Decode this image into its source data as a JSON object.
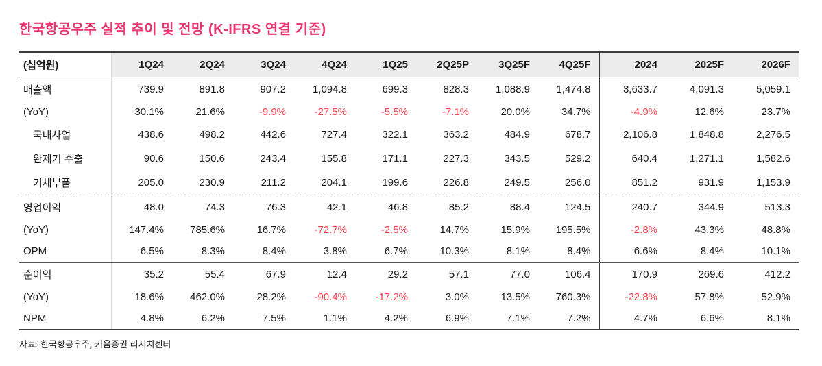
{
  "title": "한국항공우주 실적 추이 및 전망 (K-IFRS 연결 기준)",
  "source": "자료: 한국항공우주, 키움증권 리서치센터",
  "colors": {
    "title": "#e8356d",
    "negative": "#f8404e",
    "header_bg": "#ececec"
  },
  "chart_data": {
    "type": "table",
    "unit_label": "(십억원)",
    "columns": [
      "1Q24",
      "2Q24",
      "3Q24",
      "4Q24",
      "1Q25",
      "2Q25P",
      "3Q25F",
      "4Q25F",
      "2024",
      "2025F",
      "2026F"
    ],
    "sections": [
      {
        "rows": [
          {
            "label": "매출액",
            "indent": false,
            "values": [
              "739.9",
              "891.8",
              "907.2",
              "1,094.8",
              "699.3",
              "828.3",
              "1,088.9",
              "1,474.8",
              "3,633.7",
              "4,091.3",
              "5,059.1"
            ]
          },
          {
            "label": "(YoY)",
            "indent": false,
            "values": [
              "30.1%",
              "21.6%",
              "-9.9%",
              "-27.5%",
              "-5.5%",
              "-7.1%",
              "20.0%",
              "34.7%",
              "-4.9%",
              "12.6%",
              "23.7%"
            ]
          },
          {
            "label": "국내사업",
            "indent": true,
            "values": [
              "438.6",
              "498.2",
              "442.6",
              "727.4",
              "322.1",
              "363.2",
              "484.9",
              "678.7",
              "2,106.8",
              "1,848.8",
              "2,276.5"
            ]
          },
          {
            "label": "완제기 수출",
            "indent": true,
            "values": [
              "90.6",
              "150.6",
              "243.4",
              "155.8",
              "171.1",
              "227.3",
              "343.5",
              "529.2",
              "640.4",
              "1,271.1",
              "1,582.6"
            ]
          },
          {
            "label": "기체부품",
            "indent": true,
            "values": [
              "205.0",
              "230.9",
              "211.2",
              "204.1",
              "199.6",
              "226.8",
              "249.5",
              "256.0",
              "851.2",
              "931.9",
              "1,153.9"
            ]
          }
        ]
      },
      {
        "rows": [
          {
            "label": "영업이익",
            "indent": false,
            "values": [
              "48.0",
              "74.3",
              "76.3",
              "42.1",
              "46.8",
              "85.2",
              "88.4",
              "124.5",
              "240.7",
              "344.9",
              "513.3"
            ]
          },
          {
            "label": "(YoY)",
            "indent": false,
            "values": [
              "147.4%",
              "785.6%",
              "16.7%",
              "-72.7%",
              "-2.5%",
              "14.7%",
              "15.9%",
              "195.5%",
              "-2.8%",
              "43.3%",
              "48.8%"
            ]
          },
          {
            "label": "OPM",
            "indent": false,
            "values": [
              "6.5%",
              "8.3%",
              "8.4%",
              "3.8%",
              "6.7%",
              "10.3%",
              "8.1%",
              "8.4%",
              "6.6%",
              "8.4%",
              "10.1%"
            ]
          }
        ]
      },
      {
        "rows": [
          {
            "label": "순이익",
            "indent": false,
            "values": [
              "35.2",
              "55.4",
              "67.9",
              "12.4",
              "29.2",
              "57.1",
              "77.0",
              "106.4",
              "170.9",
              "269.6",
              "412.2"
            ]
          },
          {
            "label": "(YoY)",
            "indent": false,
            "values": [
              "18.6%",
              "462.0%",
              "28.2%",
              "-90.4%",
              "-17.2%",
              "3.0%",
              "13.5%",
              "760.3%",
              "-22.8%",
              "57.8%",
              "52.9%"
            ]
          },
          {
            "label": "NPM",
            "indent": false,
            "values": [
              "4.8%",
              "6.2%",
              "7.5%",
              "1.1%",
              "4.2%",
              "6.9%",
              "7.1%",
              "7.2%",
              "4.7%",
              "6.6%",
              "8.1%"
            ]
          }
        ]
      }
    ]
  }
}
